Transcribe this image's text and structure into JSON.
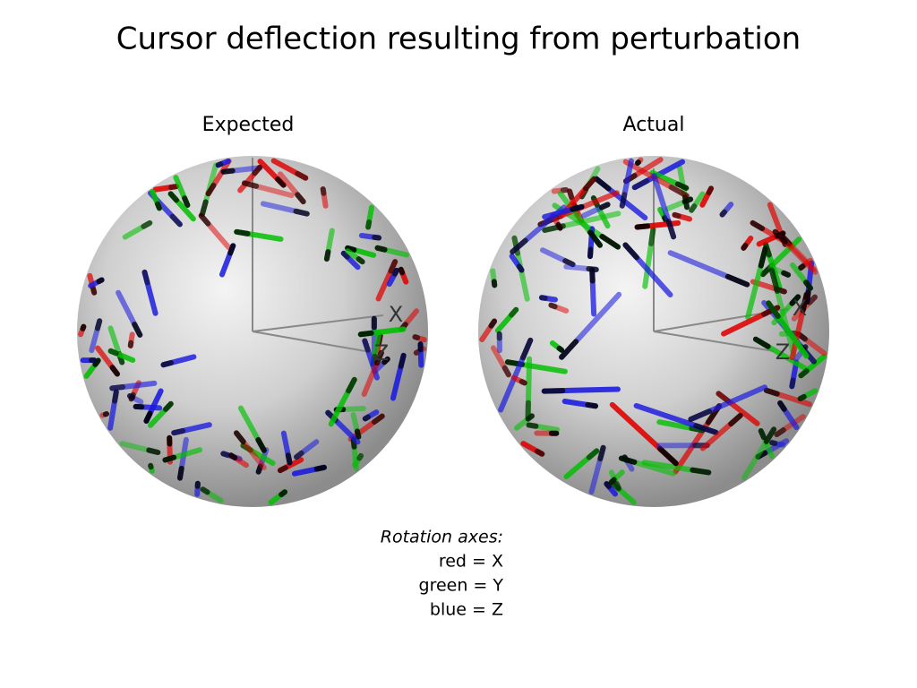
{
  "title": "Cursor deflection resulting from perturbation",
  "panels": [
    {
      "label": "Expected",
      "axes": [
        "X",
        "Z"
      ]
    },
    {
      "label": "Actual",
      "axes": [
        "X",
        "Z"
      ]
    }
  ],
  "legend": {
    "title": "Rotation axes:",
    "lines": [
      "red = X",
      "green = Y",
      "blue = Z"
    ]
  }
}
